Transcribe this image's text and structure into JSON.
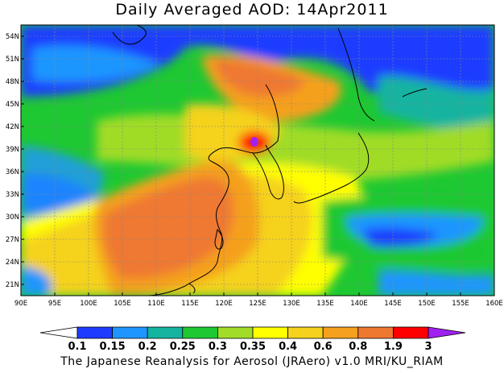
{
  "title": "Daily Averaged AOD: 14Apr2011",
  "footer": "The Japanese Reanalysis for Aerosol (JRAero) v1.0 MRI/KU_RIAM",
  "map": {
    "lon_range": [
      90,
      160
    ],
    "lat_range": [
      19.5,
      55.5
    ],
    "lon_ticks": [
      "90E",
      "95E",
      "100E",
      "105E",
      "110E",
      "115E",
      "120E",
      "125E",
      "130E",
      "135E",
      "140E",
      "145E",
      "150E",
      "155E",
      "160E"
    ],
    "lat_ticks": [
      "21N",
      "24N",
      "27N",
      "30N",
      "33N",
      "36N",
      "39N",
      "42N",
      "45N",
      "48N",
      "51N",
      "54N"
    ]
  },
  "colorbar": {
    "labels": [
      "0.1",
      "0.15",
      "0.2",
      "0.25",
      "0.3",
      "0.35",
      "0.4",
      "0.6",
      "0.8",
      "1.9",
      "3"
    ],
    "colors": [
      "#ffffff",
      "#1e3cff",
      "#1f96ff",
      "#14b4a0",
      "#1ec832",
      "#a0dc28",
      "#ffff00",
      "#f5d21e",
      "#f5a01e",
      "#ef7830",
      "#ff0000",
      "#a020f0"
    ]
  }
}
